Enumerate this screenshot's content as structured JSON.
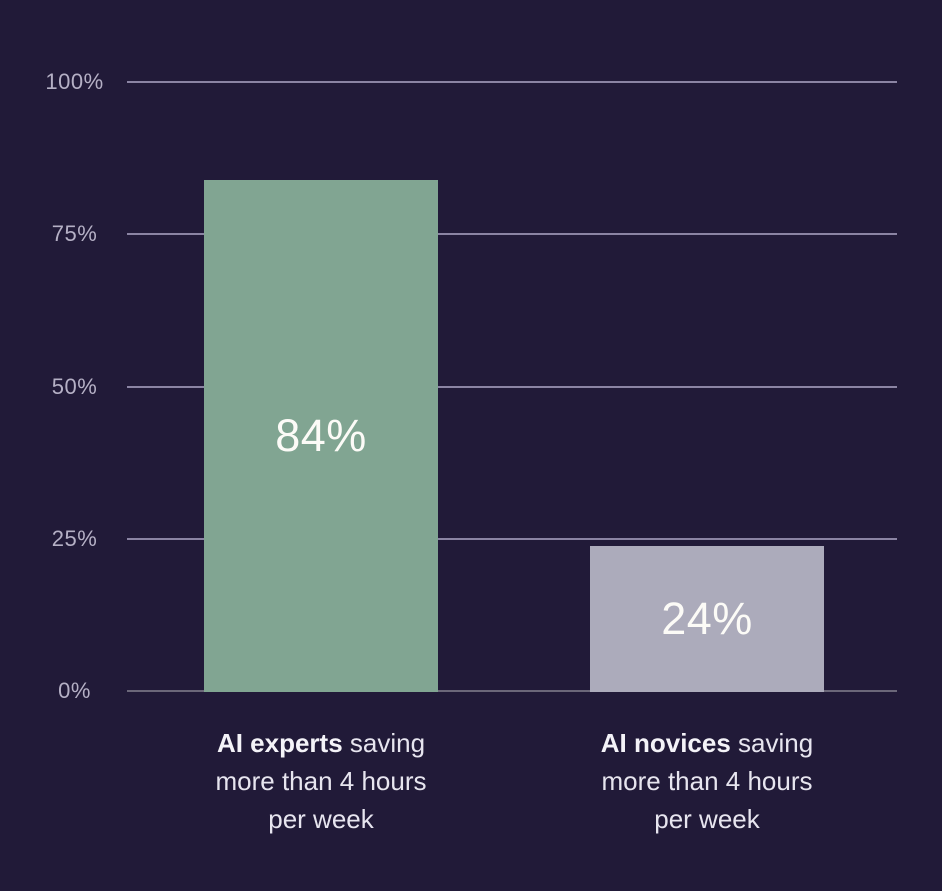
{
  "chart_data": {
    "type": "bar",
    "title": "",
    "xlabel": "",
    "ylabel": "",
    "ylim": [
      0,
      100
    ],
    "grid": true,
    "legend": "none",
    "categories": [
      "AI experts saving more than 4 hours per week",
      "AI novices saving more than 4 hours per week"
    ],
    "values": [
      84,
      24
    ],
    "y_axis": {
      "ticks": [
        {
          "label": "100%",
          "value": 100
        },
        {
          "label": "75%",
          "value": 75
        },
        {
          "label": "50%",
          "value": 50
        },
        {
          "label": "25%",
          "value": 25
        },
        {
          "label": "0%",
          "value": 0
        }
      ]
    },
    "bars": [
      {
        "value": 84,
        "value_label": "84%",
        "color": "#81a592",
        "category": {
          "bold": "AI experts",
          "line1_rest": " saving",
          "line2": "more than 4 hours",
          "line3": "per week"
        }
      },
      {
        "value": 24,
        "value_label": "24%",
        "color": "#acabbb",
        "category": {
          "bold": "AI novices",
          "line1_rest": " saving",
          "line2": "more than 4 hours",
          "line3": "per week"
        }
      }
    ],
    "colors": {
      "background": "#211a38",
      "gridline": "#9e98b6",
      "baseline": "#6b6779",
      "tick_text": "#b5b0c5",
      "category_text": "#e7e5ef",
      "value_text": "#fcfbf7"
    }
  }
}
